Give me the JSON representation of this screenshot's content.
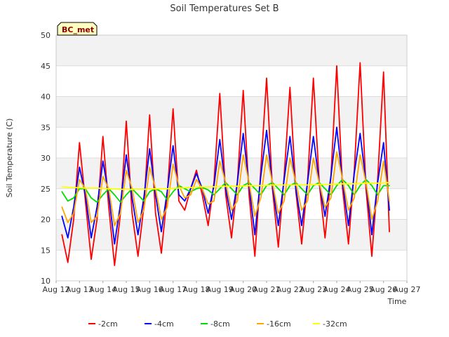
{
  "chart_data": {
    "type": "line",
    "title": "Soil Temperatures Set B",
    "xlabel": "Time",
    "ylabel": "Soil Temperature (C)",
    "badge": "BC_met",
    "ylim": [
      10,
      50
    ],
    "yticks": [
      10,
      15,
      20,
      25,
      30,
      35,
      40,
      45,
      50
    ],
    "xlim": [
      12,
      27
    ],
    "xticks": [
      12,
      13,
      14,
      15,
      16,
      17,
      18,
      19,
      20,
      21,
      22,
      23,
      24,
      25,
      26,
      27
    ],
    "xtick_labels": [
      "Aug 12",
      "Aug 13",
      "Aug 14",
      "Aug 15",
      "Aug 16",
      "Aug 17",
      "Aug 18",
      "Aug 19",
      "Aug 20",
      "Aug 21",
      "Aug 22",
      "Aug 23",
      "Aug 24",
      "Aug 25",
      "Aug 26",
      "Aug 27"
    ],
    "grid": true,
    "shaded_bands": true,
    "legend_position": "bottom",
    "x_unit": "day of August (fractional)",
    "series": [
      {
        "name": "-2cm",
        "color": "#ff0000",
        "x": [
          12.25,
          12.5,
          12.75,
          13.0,
          13.25,
          13.5,
          13.75,
          14.0,
          14.25,
          14.5,
          14.75,
          15.0,
          15.25,
          15.5,
          15.75,
          16.0,
          16.25,
          16.5,
          16.75,
          17.0,
          17.25,
          17.5,
          17.75,
          18.0,
          18.25,
          18.5,
          18.75,
          19.0,
          19.25,
          19.5,
          19.75,
          20.0,
          20.25,
          20.5,
          20.75,
          21.0,
          21.25,
          21.5,
          21.75,
          22.0,
          22.25,
          22.5,
          22.75,
          23.0,
          23.25,
          23.5,
          23.75,
          24.0,
          24.25,
          24.5,
          24.75,
          25.0,
          25.25,
          25.5,
          25.75,
          26.0,
          26.25
        ],
        "y": [
          17.5,
          13.0,
          20.0,
          32.5,
          23.0,
          13.5,
          20.0,
          33.5,
          22.0,
          12.5,
          21.0,
          36.0,
          21.0,
          14.0,
          22.0,
          37.0,
          21.0,
          14.5,
          24.0,
          38.0,
          23.0,
          21.5,
          25.0,
          28.0,
          24.0,
          19.0,
          26.0,
          40.5,
          24.0,
          17.0,
          26.0,
          41.0,
          24.0,
          14.0,
          28.0,
          43.0,
          25.0,
          15.5,
          27.0,
          41.5,
          24.5,
          16.0,
          26.0,
          43.0,
          26.0,
          17.0,
          27.0,
          45.0,
          25.0,
          16.0,
          28.0,
          45.5,
          25.0,
          14.0,
          26.5,
          44.0,
          18.0
        ]
      },
      {
        "name": "-4cm",
        "color": "#0000ff",
        "x": [
          12.25,
          12.5,
          12.75,
          13.0,
          13.25,
          13.5,
          13.75,
          14.0,
          14.25,
          14.5,
          14.75,
          15.0,
          15.25,
          15.5,
          15.75,
          16.0,
          16.25,
          16.5,
          16.75,
          17.0,
          17.25,
          17.5,
          17.75,
          18.0,
          18.25,
          18.5,
          18.75,
          19.0,
          19.25,
          19.5,
          19.75,
          20.0,
          20.25,
          20.5,
          20.75,
          21.0,
          21.25,
          21.5,
          21.75,
          22.0,
          22.25,
          22.5,
          22.75,
          23.0,
          23.25,
          23.5,
          23.75,
          24.0,
          24.25,
          24.5,
          24.75,
          25.0,
          25.25,
          25.5,
          25.75,
          26.0,
          26.25
        ],
        "y": [
          20.5,
          17.0,
          22.0,
          28.5,
          24.0,
          17.0,
          22.0,
          29.5,
          24.0,
          16.0,
          22.5,
          30.5,
          23.5,
          17.5,
          23.5,
          31.5,
          24.0,
          18.0,
          24.5,
          32.0,
          24.0,
          23.0,
          25.0,
          27.5,
          25.0,
          21.0,
          25.5,
          33.0,
          25.0,
          20.0,
          26.0,
          34.0,
          25.5,
          17.5,
          27.0,
          34.5,
          25.5,
          19.0,
          26.5,
          33.5,
          25.0,
          19.0,
          26.0,
          33.5,
          26.0,
          20.5,
          27.0,
          35.0,
          26.0,
          19.0,
          27.5,
          34.0,
          26.0,
          17.5,
          26.0,
          32.5,
          21.5
        ]
      },
      {
        "name": "-8cm",
        "color": "#00dd00",
        "x": [
          12.25,
          12.5,
          12.75,
          13.0,
          13.25,
          13.5,
          13.75,
          14.0,
          14.25,
          14.5,
          14.75,
          15.0,
          15.25,
          15.5,
          15.75,
          16.0,
          16.25,
          16.5,
          16.75,
          17.0,
          17.25,
          17.5,
          17.75,
          18.0,
          18.25,
          18.5,
          18.75,
          19.0,
          19.25,
          19.5,
          19.75,
          20.0,
          20.25,
          20.5,
          20.75,
          21.0,
          21.25,
          21.5,
          21.75,
          22.0,
          22.25,
          22.5,
          22.75,
          23.0,
          23.25,
          23.5,
          23.75,
          24.0,
          24.25,
          24.5,
          24.75,
          25.0,
          25.25,
          25.5,
          25.75,
          26.0,
          26.25
        ],
        "y": [
          24.5,
          23.0,
          23.5,
          25.0,
          25.0,
          23.5,
          22.8,
          24.0,
          25.0,
          24.0,
          22.8,
          24.0,
          25.0,
          24.0,
          23.0,
          24.5,
          25.0,
          24.5,
          23.2,
          24.5,
          25.5,
          25.0,
          24.5,
          25.0,
          25.2,
          24.8,
          24.0,
          25.0,
          26.0,
          25.0,
          24.0,
          25.5,
          26.0,
          25.0,
          24.0,
          25.5,
          26.0,
          25.0,
          24.0,
          25.5,
          26.0,
          25.0,
          24.0,
          25.5,
          26.0,
          25.0,
          24.0,
          25.5,
          26.5,
          25.5,
          24.0,
          25.5,
          26.5,
          25.5,
          24.0,
          25.5,
          25.5
        ]
      },
      {
        "name": "-16cm",
        "color": "#ffa500",
        "x": [
          12.25,
          12.5,
          12.75,
          13.0,
          13.25,
          13.5,
          13.75,
          14.0,
          14.25,
          14.5,
          14.75,
          15.0,
          15.25,
          15.5,
          15.75,
          16.0,
          16.25,
          16.5,
          16.75,
          17.0,
          17.25,
          17.5,
          17.75,
          18.0,
          18.25,
          18.5,
          18.75,
          19.0,
          19.25,
          19.5,
          19.75,
          20.0,
          20.25,
          20.5,
          20.75,
          21.0,
          21.25,
          21.5,
          21.75,
          22.0,
          22.25,
          22.5,
          22.75,
          23.0,
          23.25,
          23.5,
          23.75,
          24.0,
          24.25,
          24.5,
          24.75,
          25.0,
          25.25,
          25.5,
          25.75,
          26.0,
          26.25
        ],
        "y": [
          22.0,
          19.5,
          21.0,
          26.5,
          25.0,
          19.5,
          20.5,
          27.0,
          25.0,
          19.0,
          21.0,
          28.0,
          25.0,
          19.5,
          21.5,
          28.5,
          25.0,
          20.0,
          22.0,
          29.0,
          25.5,
          23.5,
          24.0,
          26.5,
          25.0,
          22.5,
          23.0,
          29.5,
          26.0,
          21.5,
          23.0,
          30.5,
          26.0,
          20.5,
          23.5,
          30.5,
          26.0,
          21.0,
          23.0,
          30.0,
          26.0,
          21.5,
          23.0,
          30.0,
          26.0,
          22.0,
          23.5,
          31.0,
          26.5,
          21.5,
          23.5,
          30.5,
          26.0,
          20.0,
          23.0,
          29.5,
          23.0
        ]
      },
      {
        "name": "-32cm",
        "color": "#ffff00",
        "x": [
          12.25,
          12.75,
          13.25,
          13.75,
          14.25,
          14.75,
          15.25,
          15.75,
          16.25,
          16.75,
          17.25,
          17.75,
          18.25,
          18.75,
          19.25,
          19.75,
          20.25,
          20.75,
          21.25,
          21.75,
          22.25,
          22.75,
          23.25,
          23.75,
          24.25,
          24.75,
          25.25,
          25.75,
          26.25
        ],
        "y": [
          25.3,
          25.2,
          25.1,
          25.1,
          25.0,
          24.9,
          24.9,
          24.9,
          25.0,
          25.0,
          25.1,
          25.2,
          25.3,
          25.3,
          25.4,
          25.4,
          25.5,
          25.5,
          25.6,
          25.6,
          25.6,
          25.6,
          25.7,
          25.7,
          25.8,
          25.8,
          25.9,
          25.9,
          26.0
        ]
      }
    ]
  }
}
